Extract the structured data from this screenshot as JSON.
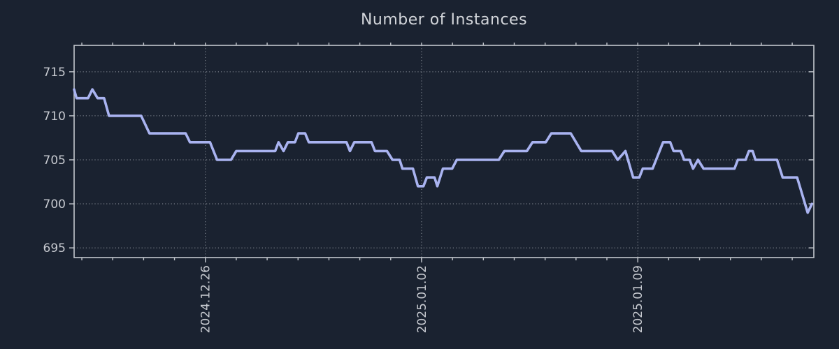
{
  "title": "Number of Instances",
  "colors": {
    "background": "#1a2230",
    "line": "#a9b3f0",
    "grid": "#8d939c",
    "spine": "#c3c7cd",
    "tick_label": "#c7cad0",
    "title_text": "#d2d5da"
  },
  "chart_data": {
    "type": "line",
    "title": "Number of Instances",
    "xlabel": "",
    "ylabel": "",
    "grid": {
      "show": true,
      "style": "dotted"
    },
    "legend": null,
    "x_axis": {
      "unit": "days since 2024.12.22",
      "xlim": [
        -0.25,
        23.7
      ],
      "minor_tick_every_days": 1,
      "minor_tick_first_day": 0,
      "minor_tick_last_day": 23,
      "major_ticks": [
        {
          "day": 4,
          "label": "2024.12.26"
        },
        {
          "day": 11,
          "label": "2025.01.02"
        },
        {
          "day": 18,
          "label": "2025.01.09"
        }
      ]
    },
    "y_axis": {
      "ticks": [
        695,
        700,
        705,
        710,
        715
      ],
      "ylim": [
        693.9,
        718.0
      ]
    },
    "series": [
      {
        "name": "instances",
        "color": "#a9b3f0",
        "points_day_value": [
          [
            -0.25,
            713
          ],
          [
            -0.17,
            712
          ],
          [
            0.2,
            712
          ],
          [
            0.34,
            713
          ],
          [
            0.51,
            712
          ],
          [
            0.72,
            712
          ],
          [
            0.88,
            710
          ],
          [
            1.92,
            710
          ],
          [
            2.19,
            708
          ],
          [
            3.36,
            708
          ],
          [
            3.5,
            707
          ],
          [
            4.15,
            707
          ],
          [
            4.38,
            705
          ],
          [
            4.83,
            705
          ],
          [
            5.0,
            706
          ],
          [
            6.26,
            706
          ],
          [
            6.37,
            707
          ],
          [
            6.53,
            706
          ],
          [
            6.67,
            707
          ],
          [
            6.9,
            707
          ],
          [
            7.01,
            708
          ],
          [
            7.23,
            708
          ],
          [
            7.35,
            707
          ],
          [
            8.57,
            707
          ],
          [
            8.68,
            706
          ],
          [
            8.82,
            707
          ],
          [
            9.38,
            707
          ],
          [
            9.49,
            706
          ],
          [
            9.88,
            706
          ],
          [
            10.06,
            705
          ],
          [
            10.29,
            705
          ],
          [
            10.38,
            704
          ],
          [
            10.72,
            704
          ],
          [
            10.88,
            702
          ],
          [
            11.06,
            702
          ],
          [
            11.17,
            703
          ],
          [
            11.42,
            703
          ],
          [
            11.51,
            702
          ],
          [
            11.69,
            704
          ],
          [
            11.99,
            704
          ],
          [
            12.14,
            705
          ],
          [
            13.5,
            705
          ],
          [
            13.68,
            706
          ],
          [
            14.41,
            706
          ],
          [
            14.59,
            707
          ],
          [
            15.02,
            707
          ],
          [
            15.2,
            708
          ],
          [
            15.83,
            708
          ],
          [
            16.17,
            706
          ],
          [
            17.17,
            706
          ],
          [
            17.35,
            705
          ],
          [
            17.6,
            706
          ],
          [
            17.85,
            703
          ],
          [
            18.05,
            703
          ],
          [
            18.16,
            704
          ],
          [
            18.48,
            704
          ],
          [
            18.82,
            707
          ],
          [
            19.05,
            707
          ],
          [
            19.16,
            706
          ],
          [
            19.39,
            706
          ],
          [
            19.5,
            705
          ],
          [
            19.68,
            705
          ],
          [
            19.79,
            704
          ],
          [
            19.95,
            705
          ],
          [
            20.13,
            704
          ],
          [
            21.13,
            704
          ],
          [
            21.24,
            705
          ],
          [
            21.49,
            705
          ],
          [
            21.6,
            706
          ],
          [
            21.72,
            706
          ],
          [
            21.81,
            705
          ],
          [
            22.51,
            705
          ],
          [
            22.69,
            703
          ],
          [
            23.16,
            703
          ],
          [
            23.5,
            699
          ],
          [
            23.64,
            700
          ]
        ]
      }
    ]
  }
}
